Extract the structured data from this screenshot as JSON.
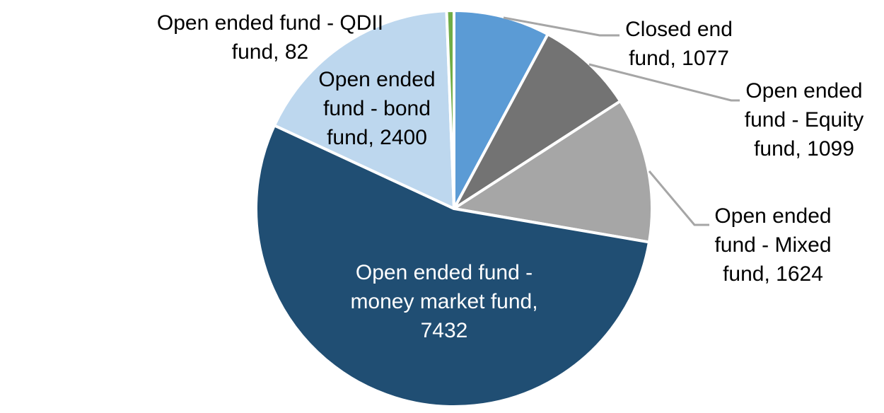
{
  "chart_data": {
    "type": "pie",
    "title": "",
    "legend_position": "none",
    "background_color": "#FFFFFF",
    "start_angle_deg": 0,
    "direction": "clockwise",
    "total": 13714,
    "separator_color": "#FFFFFF",
    "leader_line_color": "#A6A6A6",
    "slices": [
      {
        "id": "closed-end-fund",
        "label": "Closed end fund",
        "value": 1077,
        "color": "#5B9BD5",
        "label_placement": "outside",
        "label_text": "Closed end fund, 1077",
        "label_lines": [
          "Closed end",
          "fund, 1077"
        ],
        "label_color": "#000000",
        "has_leader_line": true
      },
      {
        "id": "open-ended-equity-fund",
        "label": "Open ended fund - Equity fund",
        "value": 1099,
        "color": "#737373",
        "label_placement": "outside",
        "label_text": "Open ended fund - Equity fund, 1099",
        "label_lines": [
          "Open ended",
          "fund - Equity",
          "fund, 1099"
        ],
        "label_color": "#000000",
        "has_leader_line": true
      },
      {
        "id": "open-ended-mixed-fund",
        "label": "Open ended fund - Mixed fund",
        "value": 1624,
        "color": "#A6A6A6",
        "label_placement": "outside",
        "label_text": "Open ended fund - Mixed fund, 1624",
        "label_lines": [
          "Open ended",
          "fund - Mixed",
          "fund, 1624"
        ],
        "label_color": "#000000",
        "has_leader_line": true
      },
      {
        "id": "open-ended-money-market-fund",
        "label": "Open ended fund - money market fund",
        "value": 7432,
        "color": "#204E73",
        "label_placement": "inside",
        "label_text": "Open ended fund - money market fund, 7432",
        "label_lines": [
          "Open ended fund -",
          "money market fund,",
          "7432"
        ],
        "label_color": "#FFFFFF",
        "has_leader_line": false
      },
      {
        "id": "open-ended-bond-fund",
        "label": "Open ended fund - bond fund",
        "value": 2400,
        "color": "#BDD7EE",
        "label_placement": "outside",
        "label_text": "Open ended fund - bond fund, 2400",
        "label_lines": [
          "Open ended",
          "fund - bond",
          "fund, 2400"
        ],
        "label_color": "#000000",
        "has_leader_line": false
      },
      {
        "id": "open-ended-qdii-fund",
        "label": "Open ended fund - QDII fund",
        "value": 82,
        "color": "#70AD47",
        "label_placement": "outside",
        "label_text": "Open ended fund - QDII fund, 82",
        "label_lines": [
          "Open ended fund - QDII",
          "fund, 82"
        ],
        "label_color": "#000000",
        "has_leader_line": false
      }
    ]
  }
}
